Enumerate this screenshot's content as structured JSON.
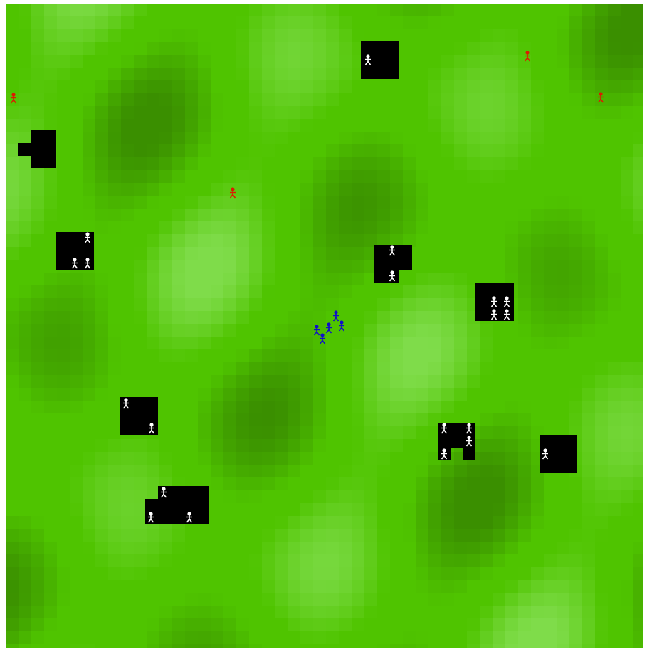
{
  "game": {
    "colors": {
      "grass_base": "#4fc400",
      "grass_light": "#7fdc4a",
      "grass_dark": "#3a8f00",
      "building": "#000000",
      "villager": "#ffffff",
      "player_squad": "#1010c8",
      "enemy_scout": "#dd1a00"
    },
    "icons": {
      "building": "hut-icon",
      "villager": "villager-icon",
      "player": "player-unit-icon",
      "enemy": "enemy-unit-icon"
    },
    "counts": {
      "buildings": 10,
      "villagers": 21,
      "player_units": 5,
      "enemy_units": 4
    }
  }
}
